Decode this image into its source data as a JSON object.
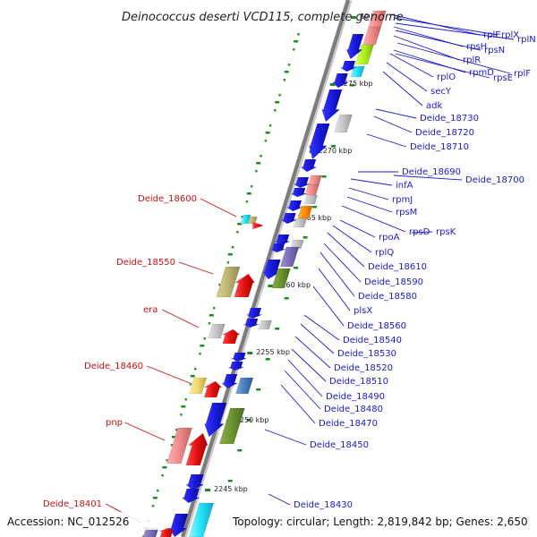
{
  "title": "Deinococcus deserti VCD115, complete genome",
  "accession": "Accession: NC_012526",
  "topology": "Topology: circular; Length: 2,819,842 bp; Genes: 2,650",
  "colors": {
    "forward": "#1a1adc",
    "reverse": "#e01010",
    "backbone": "#8a8a8a",
    "tick": "#1f8a1f",
    "dots": "#2a9a2a",
    "label_right": "#1a1acc",
    "label_left": "#cc1111"
  },
  "kbp_marks": [
    "2245 kbp",
    "2250 kbp",
    "2255 kbp",
    "2260 kbp",
    "2265 kbp",
    "2270 kbp",
    "2275 kbp",
    "80 kbp"
  ],
  "right_labels": [
    "rplE",
    "rplX",
    "rplN",
    "rpsH",
    "rpsN",
    "rplR",
    "rplF",
    "rpmD",
    "rpsE",
    "rplO",
    "secY",
    "adk",
    "Deide_18730",
    "Deide_18720",
    "Deide_18710",
    "Deide_18690",
    "Deide_18700",
    "infA",
    "rpmJ",
    "rpsM",
    "rpsD",
    "rpsK",
    "rpoA",
    "rplQ",
    "Deide_18610",
    "Deide_18590",
    "Deide_18580",
    "plsX",
    "Deide_18560",
    "Deide_18540",
    "Deide_18530",
    "Deide_18520",
    "Deide_18510",
    "Deide_18490",
    "Deide_18480",
    "Deide_18470",
    "Deide_18450",
    "Deide_18430"
  ],
  "left_labels": [
    "Deide_18600",
    "Deide_18550",
    "era",
    "Deide_18460",
    "pnp",
    "Deide_18401"
  ]
}
